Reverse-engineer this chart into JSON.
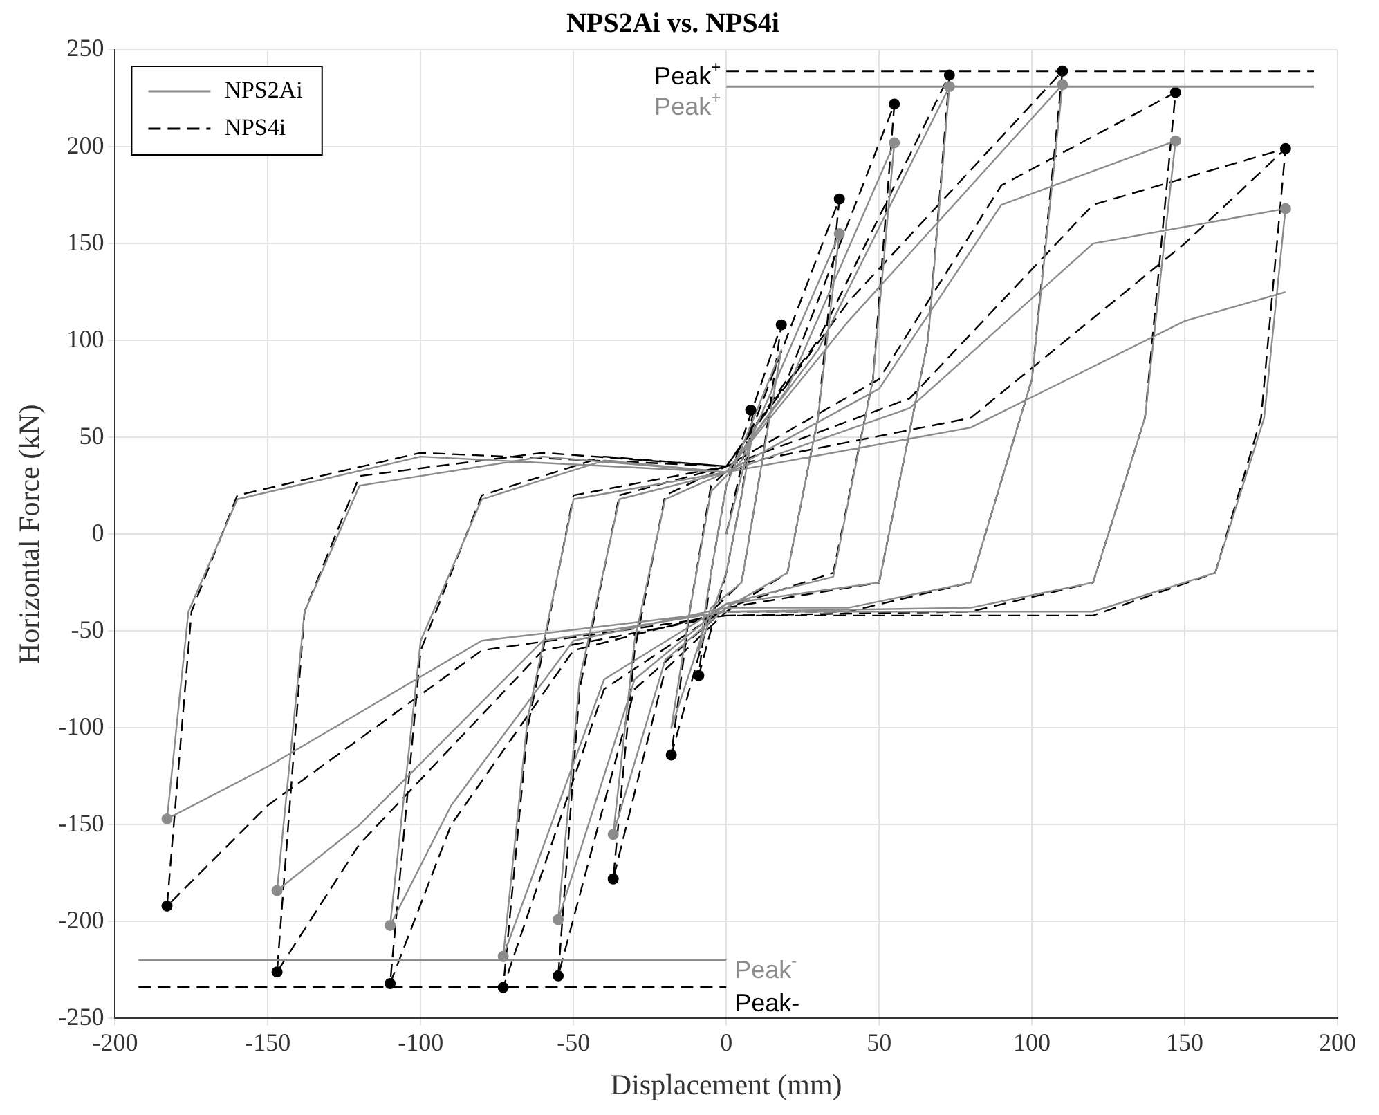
{
  "chart_data": {
    "type": "line",
    "title": "NPS2Ai vs. NPS4i",
    "xlabel": "Displacement (mm)",
    "ylabel": "Horizontal Force (kN)",
    "xlim": [
      -200,
      200
    ],
    "xticks": [
      -200,
      -150,
      -100,
      -50,
      0,
      50,
      100,
      150,
      200
    ],
    "ylim": [
      -250,
      250
    ],
    "yticks": [
      -250,
      -200,
      -150,
      -100,
      -50,
      0,
      50,
      100,
      150,
      200,
      250
    ],
    "grid": true,
    "legend": "top left",
    "marker": "none",
    "series": [
      {
        "name": "NPS2Ai",
        "color": "#8c8c8c",
        "line_style": "solid",
        "x": [
          0,
          9,
          5,
          0,
          -9,
          -5,
          0,
          18,
          12,
          5,
          -5,
          -18,
          -12,
          -5,
          5,
          37,
          30,
          20,
          0,
          -20,
          -37,
          -30,
          -20,
          0,
          20,
          55,
          48,
          35,
          0,
          -30,
          -55,
          -48,
          -35,
          0,
          30,
          73,
          66,
          50,
          0,
          -40,
          -73,
          -65,
          -50,
          0,
          40,
          110,
          100,
          80,
          40,
          0,
          -50,
          -90,
          -110,
          -100,
          -80,
          -40,
          0,
          50,
          90,
          147,
          137,
          120,
          80,
          0,
          -60,
          -120,
          -147,
          -138,
          -120,
          -60,
          0,
          60,
          120,
          183,
          176,
          160,
          120,
          0,
          -80,
          -150,
          -183,
          -176,
          -160,
          -100,
          0,
          80,
          150,
          183
        ],
        "values": [
          0,
          55,
          20,
          -20,
          -60,
          -20,
          25,
          95,
          40,
          -25,
          -38,
          -100,
          -40,
          22,
          38,
          155,
          60,
          -20,
          -38,
          -65,
          -155,
          -55,
          18,
          32,
          75,
          202,
          80,
          -22,
          -36,
          -75,
          -199,
          -75,
          18,
          32,
          95,
          231,
          100,
          -25,
          -36,
          -75,
          -218,
          -95,
          18,
          32,
          110,
          232,
          80,
          -25,
          -38,
          -38,
          -55,
          -140,
          -202,
          -55,
          18,
          38,
          32,
          75,
          170,
          203,
          60,
          -25,
          -38,
          -40,
          -55,
          -150,
          -184,
          -40,
          25,
          40,
          32,
          65,
          150,
          168,
          60,
          -20,
          -40,
          -40,
          -55,
          -120,
          -147,
          -40,
          18,
          40,
          32,
          55,
          110,
          125
        ]
      },
      {
        "name": "NPS4i",
        "color": "#000000",
        "line_style": "dashed",
        "x": [
          0,
          9,
          5,
          0,
          -9,
          -5,
          0,
          18,
          12,
          5,
          -5,
          -18,
          -12,
          -5,
          5,
          37,
          30,
          20,
          0,
          -20,
          -37,
          -30,
          -20,
          0,
          20,
          55,
          48,
          35,
          0,
          -30,
          -55,
          -48,
          -35,
          0,
          30,
          73,
          66,
          50,
          0,
          -40,
          -73,
          -65,
          -50,
          0,
          40,
          110,
          100,
          80,
          40,
          0,
          -50,
          -90,
          -110,
          -100,
          -80,
          -40,
          0,
          50,
          90,
          147,
          137,
          120,
          80,
          0,
          -60,
          -120,
          -147,
          -138,
          -120,
          -60,
          0,
          60,
          120,
          183,
          175,
          160,
          120,
          0,
          -80,
          -150,
          -183,
          -175,
          -160,
          -100,
          0,
          80,
          150,
          183
        ],
        "values": [
          0,
          64,
          20,
          -20,
          -73,
          -20,
          25,
          108,
          40,
          -25,
          -40,
          -114,
          -40,
          25,
          40,
          173,
          60,
          -20,
          -40,
          -70,
          -178,
          -60,
          20,
          35,
          80,
          222,
          80,
          -20,
          -38,
          -80,
          -228,
          -80,
          20,
          35,
          100,
          237,
          100,
          -25,
          -38,
          -80,
          -234,
          -100,
          20,
          35,
          120,
          239,
          80,
          -25,
          -40,
          -40,
          -60,
          -150,
          -232,
          -60,
          20,
          40,
          35,
          80,
          180,
          228,
          60,
          -25,
          -40,
          -42,
          -60,
          -160,
          -226,
          -40,
          30,
          42,
          35,
          70,
          170,
          199,
          60,
          -20,
          -42,
          -42,
          -60,
          -140,
          -192,
          -40,
          20,
          42,
          35,
          60,
          150,
          199
        ]
      },
      {
        "type": "scatter",
        "color": "#8c8c8c",
        "marker": "circle",
        "x": [
          55,
          73,
          110,
          147,
          183,
          37,
          -37,
          -55,
          -73,
          -110,
          -147,
          -183
        ],
        "values": [
          202,
          231,
          232,
          203,
          168,
          155,
          -155,
          -199,
          -218,
          -202,
          -184,
          -147
        ]
      },
      {
        "type": "scatter",
        "color": "#000000",
        "marker": "circle",
        "x": [
          8,
          18,
          37,
          55,
          73,
          110,
          147,
          183,
          -9,
          -18,
          -37,
          -55,
          -73,
          -110,
          -147,
          -183
        ],
        "values": [
          64,
          108,
          173,
          222,
          237,
          239,
          228,
          199,
          -73,
          -114,
          -178,
          -228,
          -234,
          -232,
          -226,
          -192
        ]
      }
    ],
    "ref_lines": [
      {
        "axis": "y",
        "value": 239,
        "label": "Peak$^{+}$",
        "color": "#000000",
        "line_style": "dashed"
      },
      {
        "axis": "y",
        "value": 231,
        "label": "Peak$^{+}$",
        "color": "#8c8c8c",
        "line_style": "solid"
      },
      {
        "axis": "y",
        "value": -220,
        "label": "Peak$^{-}$",
        "color": "#8c8c8c",
        "line_style": "solid"
      },
      {
        "axis": "y",
        "value": -234,
        "label": "Peak-",
        "color": "#000000",
        "line_style": "dashed"
      }
    ]
  }
}
